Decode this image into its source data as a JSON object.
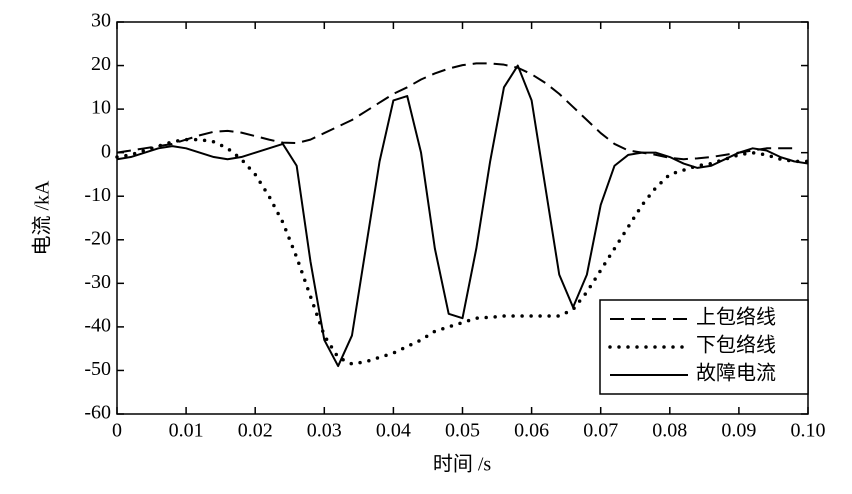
{
  "chart_data": {
    "type": "line",
    "x_label": "时间 /s",
    "y_label": "电流 /kA",
    "x": [
      0,
      0.002,
      0.004,
      0.006,
      0.008,
      0.01,
      0.012,
      0.014,
      0.016,
      0.018,
      0.02,
      0.022,
      0.024,
      0.026,
      0.028,
      0.03,
      0.032,
      0.034,
      0.036,
      0.038,
      0.04,
      0.042,
      0.044,
      0.046,
      0.048,
      0.05,
      0.052,
      0.054,
      0.056,
      0.058,
      0.06,
      0.062,
      0.064,
      0.066,
      0.068,
      0.07,
      0.072,
      0.074,
      0.076,
      0.078,
      0.08,
      0.082,
      0.084,
      0.086,
      0.088,
      0.09,
      0.092,
      0.094,
      0.096,
      0.098,
      0.1
    ],
    "series": [
      {
        "name": "上包络线",
        "color": "#000000",
        "style": "dashed",
        "values": [
          0,
          0.5,
          1,
          1.5,
          2,
          3,
          4,
          4.8,
          5,
          4.6,
          3.8,
          3,
          2.3,
          2.2,
          3,
          4.5,
          6,
          7.5,
          9.5,
          11.5,
          13.5,
          15,
          16.8,
          18.2,
          19.3,
          20.1,
          20.5,
          20.5,
          20.2,
          19.5,
          18,
          16,
          13.5,
          10.5,
          7.5,
          4.5,
          2,
          0.5,
          0,
          -0.5,
          -1.2,
          -1.5,
          -1.3,
          -1,
          -0.5,
          0,
          0.5,
          1,
          1,
          1,
          null
        ]
      },
      {
        "name": "下包络线",
        "color": "#000000",
        "style": "dotted",
        "values": [
          -1,
          -0.5,
          0.5,
          1.5,
          2.5,
          3,
          3,
          2.5,
          1,
          -1.5,
          -5,
          -10,
          -16,
          -24,
          -33,
          -42,
          -47,
          -48.5,
          -48,
          -47,
          -46,
          -44.5,
          -43,
          -41,
          -40,
          -39,
          -38,
          -37.8,
          -37.5,
          -37.5,
          -37.5,
          -37.5,
          -37.5,
          -36,
          -32,
          -27,
          -22,
          -17,
          -12,
          -8,
          -5,
          -4,
          -3,
          -2.5,
          -1.5,
          -0.5,
          0,
          -0.5,
          -1.5,
          -2,
          -2
        ]
      },
      {
        "name": "故障电流",
        "color": "#000000",
        "style": "solid",
        "values": [
          -1.5,
          -1,
          0,
          1,
          1.5,
          1,
          0,
          -1,
          -1.5,
          -1,
          0,
          1,
          2,
          -3,
          -25,
          -43,
          -49,
          -42,
          -22,
          -2,
          12,
          13,
          0,
          -22,
          -37,
          -38,
          -22,
          -2,
          15,
          20,
          12,
          -8,
          -28,
          -35.5,
          -28,
          -12,
          -3,
          -0.5,
          0,
          0,
          -1,
          -2.5,
          -3.5,
          -3,
          -1.5,
          0,
          1,
          0.5,
          -1,
          -2,
          -2.5
        ]
      }
    ],
    "xlim": [
      0,
      0.1
    ],
    "ylim": [
      -60,
      30
    ],
    "xticks": [
      0,
      0.01,
      0.02,
      0.03,
      0.04,
      0.05,
      0.06,
      0.07,
      0.08,
      0.09,
      {
        "value": 0.1,
        "label": "0.10"
      }
    ],
    "yticks": [
      -60,
      -50,
      -40,
      -30,
      -20,
      -10,
      0,
      10,
      20,
      30
    ],
    "legend": "lower right"
  }
}
